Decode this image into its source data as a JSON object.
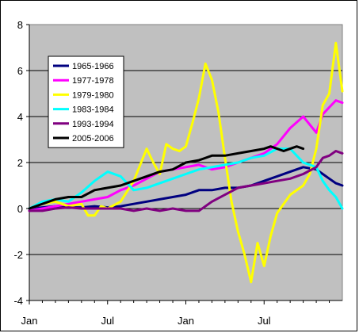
{
  "chart_data": {
    "type": "line",
    "title": "",
    "xlabel": "",
    "ylabel": "",
    "ylim": [
      -4,
      8
    ],
    "yticks": [
      -4,
      -2,
      0,
      2,
      4,
      6,
      8
    ],
    "xlim": [
      0,
      24
    ],
    "xticks": [
      {
        "pos": 0,
        "label": "Jan"
      },
      {
        "pos": 6,
        "label": "Jul"
      },
      {
        "pos": 12,
        "label": "Jan"
      },
      {
        "pos": 18,
        "label": "Jul"
      }
    ],
    "grid": "horizontal",
    "plot_background": "#c0c0c0",
    "legend_position": "left",
    "series": [
      {
        "name": "1965-1966",
        "color": "#000080",
        "x": [
          0,
          1,
          2,
          3,
          4,
          5,
          6,
          7,
          8,
          9,
          10,
          11,
          12,
          13,
          14,
          15,
          16,
          17,
          18,
          19,
          20,
          21,
          22,
          22.5,
          23,
          23.5,
          24
        ],
        "y": [
          0,
          0.05,
          0.1,
          0.05,
          0.05,
          0.1,
          0.05,
          0.1,
          0.2,
          0.3,
          0.4,
          0.5,
          0.6,
          0.8,
          0.8,
          0.9,
          0.9,
          1.0,
          1.2,
          1.4,
          1.6,
          1.8,
          1.7,
          1.5,
          1.3,
          1.1,
          1.0
        ]
      },
      {
        "name": "1977-1978",
        "color": "#ff00ff",
        "x": [
          0,
          1,
          2,
          3,
          4,
          5,
          6,
          7,
          8,
          9,
          10,
          11,
          12,
          13,
          14,
          15,
          16,
          17,
          18,
          19,
          20,
          21,
          22,
          22.5,
          23,
          23.5,
          24
        ],
        "y": [
          -0.1,
          0,
          0.1,
          0.2,
          0.3,
          0.4,
          0.5,
          0.8,
          1.0,
          1.3,
          1.6,
          1.7,
          1.8,
          1.9,
          1.7,
          1.8,
          2.0,
          2.2,
          2.4,
          2.8,
          3.5,
          4.0,
          3.3,
          4.1,
          4.4,
          4.7,
          4.6
        ]
      },
      {
        "name": "1979-1980",
        "color": "#ffff00",
        "x": [
          0,
          1,
          2,
          3,
          4,
          4.5,
          5,
          5.5,
          6,
          7,
          8,
          9,
          9.5,
          10,
          10.5,
          11,
          11.5,
          12,
          12.5,
          13,
          13.5,
          14,
          14.5,
          15,
          15.5,
          16,
          16.5,
          17,
          17.5,
          18,
          18.5,
          19,
          20,
          21,
          21.5,
          22,
          22.5,
          23,
          23.5,
          24
        ],
        "y": [
          0,
          0.2,
          0.3,
          0.1,
          0.2,
          -0.3,
          -0.3,
          0.1,
          0,
          0.3,
          1.2,
          2.6,
          2.0,
          1.5,
          2.8,
          2.6,
          2.5,
          2.7,
          3.7,
          4.8,
          6.3,
          5.6,
          4.2,
          2.2,
          0.3,
          -1.0,
          -2.0,
          -3.2,
          -1.5,
          -2.5,
          -1.2,
          -0.2,
          0.6,
          1.0,
          1.5,
          2.6,
          4.5,
          5.0,
          7.2,
          5.1
        ]
      },
      {
        "name": "1983-1984",
        "color": "#00ffff",
        "x": [
          0,
          1,
          2,
          3,
          4,
          5,
          6,
          7,
          8,
          9,
          10,
          11,
          12,
          13,
          14,
          15,
          16,
          17,
          18,
          19,
          20,
          21,
          22,
          22.5,
          23,
          23.5,
          24
        ],
        "y": [
          0,
          0.3,
          0.4,
          0.3,
          0.7,
          1.2,
          1.6,
          1.4,
          0.8,
          0.9,
          1.1,
          1.3,
          1.5,
          1.7,
          1.8,
          1.9,
          2.0,
          2.2,
          2.3,
          2.6,
          2.6,
          2.0,
          1.8,
          1.2,
          0.8,
          0.5,
          0.0
        ]
      },
      {
        "name": "1993-1994",
        "color": "#800080",
        "x": [
          0,
          1,
          2,
          3,
          4,
          5,
          6,
          7,
          8,
          9,
          10,
          11,
          12,
          13,
          14,
          15,
          16,
          17,
          18,
          19,
          20,
          21,
          22,
          22.5,
          23,
          23.5,
          24
        ],
        "y": [
          -0.1,
          -0.1,
          0,
          0.05,
          0,
          0,
          0,
          0,
          -0.1,
          0,
          -0.1,
          0,
          -0.1,
          -0.1,
          0.3,
          0.6,
          0.9,
          1.0,
          1.1,
          1.2,
          1.3,
          1.5,
          1.8,
          2.2,
          2.3,
          2.5,
          2.4
        ]
      },
      {
        "name": "2005-2006",
        "color": "#000000",
        "x": [
          0,
          1,
          2,
          3,
          4,
          5,
          6,
          7,
          8,
          9,
          10,
          11,
          12,
          13,
          14,
          15,
          16,
          17,
          18,
          18.5,
          19,
          19.5,
          20,
          20.5,
          21
        ],
        "y": [
          0,
          0.2,
          0.4,
          0.5,
          0.5,
          0.8,
          0.9,
          1.0,
          1.2,
          1.4,
          1.6,
          1.7,
          2.0,
          2.1,
          2.3,
          2.3,
          2.4,
          2.5,
          2.6,
          2.7,
          2.6,
          2.5,
          2.6,
          2.7,
          2.6
        ]
      }
    ]
  }
}
